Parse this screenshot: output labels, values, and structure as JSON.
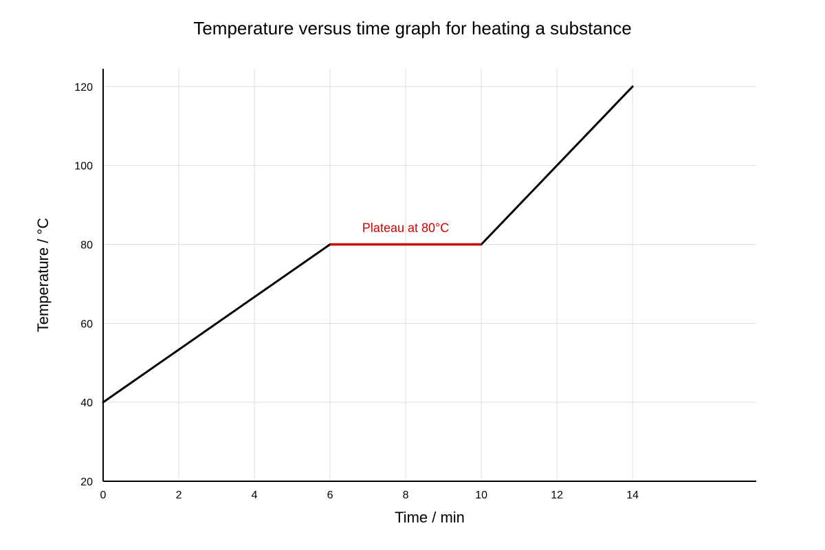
{
  "chart_data": {
    "type": "line",
    "title": "Temperature versus time graph for heating a substance",
    "xlabel": "Time / min",
    "ylabel": "Temperature / °C",
    "xlim": [
      0,
      17.27
    ],
    "ylim": [
      20,
      124.5
    ],
    "x_ticks": [
      0,
      2,
      4,
      6,
      8,
      10,
      12,
      14
    ],
    "x_tick_labels": [
      "0",
      "2",
      "4",
      "6",
      "8",
      "10",
      "12",
      "14"
    ],
    "y_ticks": [
      20,
      40,
      60,
      80,
      100,
      120
    ],
    "y_tick_labels": [
      "20",
      "40",
      "60",
      "80",
      "100",
      "120"
    ],
    "grid": true,
    "series": [
      {
        "color": "#000000",
        "x": [
          0,
          6,
          10,
          14
        ],
        "y": [
          40,
          80,
          80,
          120
        ]
      }
    ],
    "highlight_segment": {
      "x": [
        6,
        10
      ],
      "y": [
        80,
        80
      ],
      "color": "#cc0000"
    },
    "annotations": [
      {
        "text": "Plateau at 80°C",
        "x": 8,
        "y": 80,
        "color": "#cc0000"
      }
    ]
  }
}
